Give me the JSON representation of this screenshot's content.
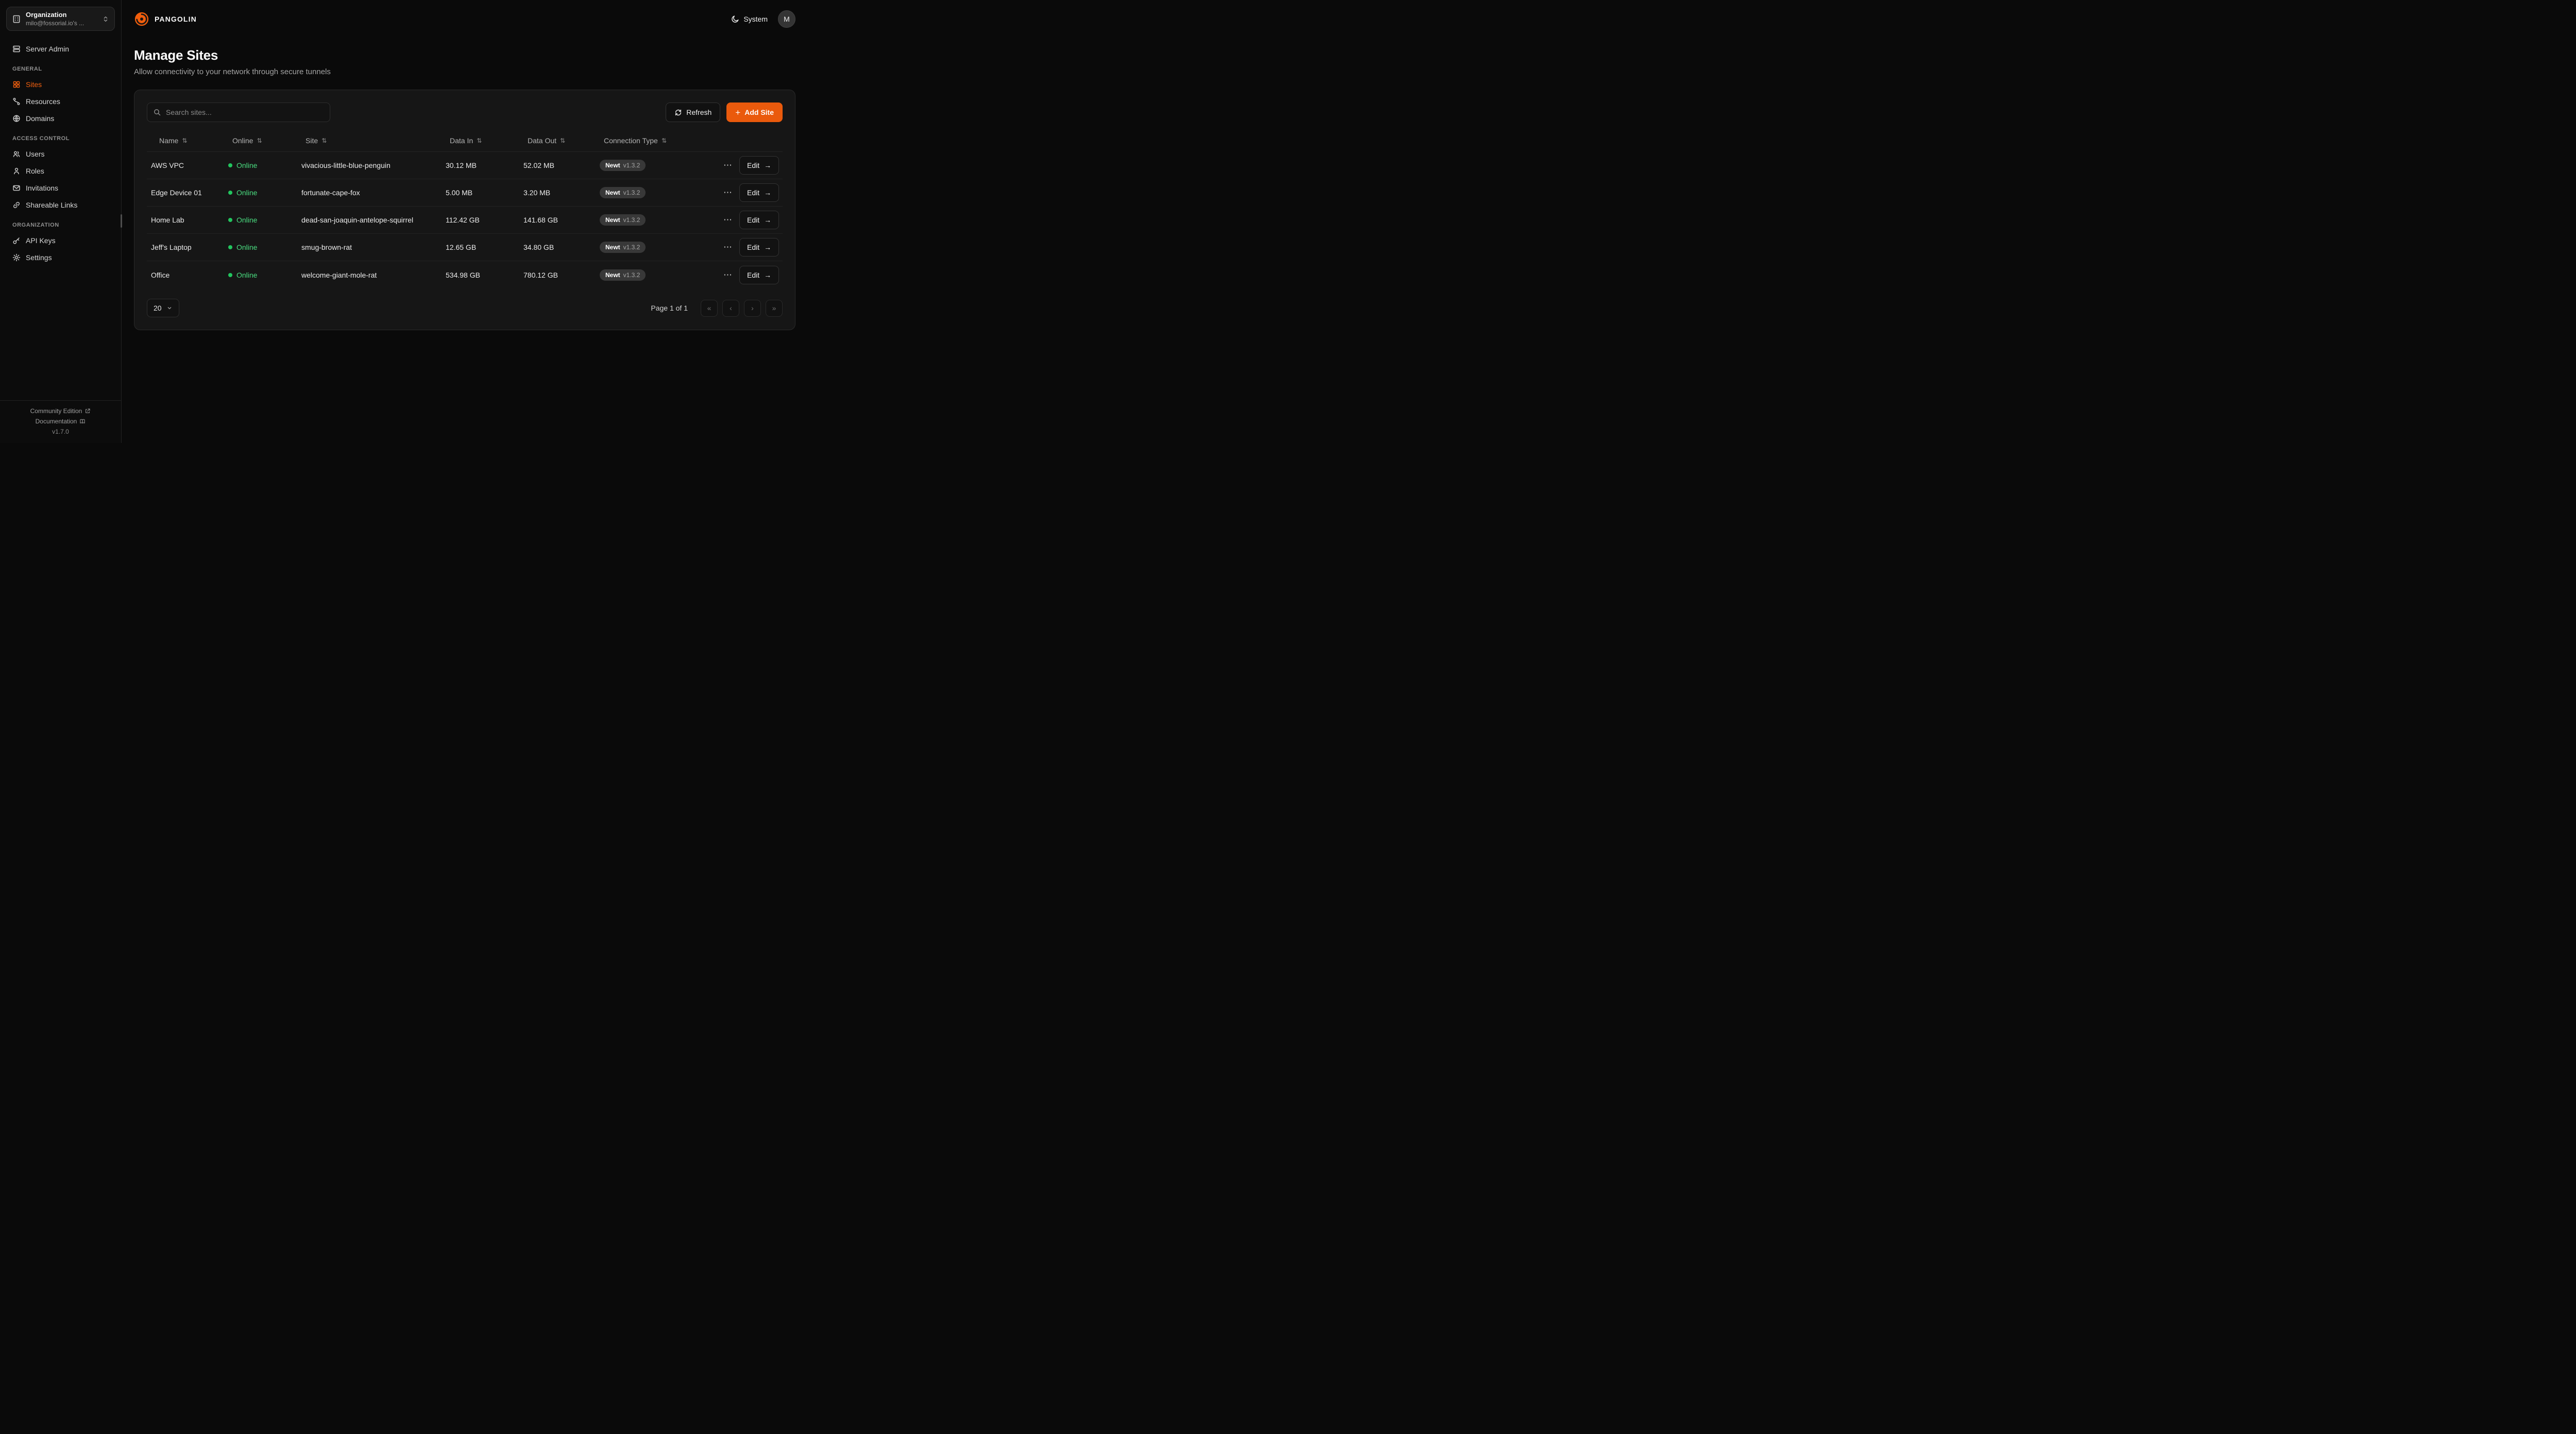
{
  "icons": {
    "plus": "+",
    "sort": "⇅",
    "ellipsis": "⋯",
    "arrow_right": "→",
    "pagination_first": "«",
    "pagination_prev": "‹",
    "pagination_next": "›",
    "pagination_last": "»"
  },
  "sidebar": {
    "org_selector": {
      "title": "Organization",
      "value": "milo@fossorial.io's ..."
    },
    "top_items": [
      {
        "label": "Server Admin",
        "icon": "server"
      }
    ],
    "sections": [
      {
        "label": "GENERAL",
        "items": [
          {
            "label": "Sites",
            "icon": "grid",
            "active": true
          },
          {
            "label": "Resources",
            "icon": "waypoints"
          },
          {
            "label": "Domains",
            "icon": "globe"
          }
        ]
      },
      {
        "label": "ACCESS CONTROL",
        "items": [
          {
            "label": "Users",
            "icon": "users"
          },
          {
            "label": "Roles",
            "icon": "user"
          },
          {
            "label": "Invitations",
            "icon": "mail"
          },
          {
            "label": "Shareable Links",
            "icon": "link"
          }
        ]
      },
      {
        "label": "ORGANIZATION",
        "items": [
          {
            "label": "API Keys",
            "icon": "key"
          },
          {
            "label": "Settings",
            "icon": "gear"
          }
        ]
      }
    ],
    "footer": {
      "community_edition": "Community Edition",
      "documentation": "Documentation",
      "version": "v1.7.0"
    }
  },
  "header": {
    "brand": "PANGOLIN",
    "theme_label": "System",
    "avatar_initial": "M"
  },
  "page": {
    "title": "Manage Sites",
    "subtitle": "Allow connectivity to your network through secure tunnels"
  },
  "toolbar": {
    "search_placeholder": "Search sites...",
    "refresh_label": "Refresh",
    "add_site_label": "Add Site"
  },
  "table": {
    "columns": [
      "Name",
      "Online",
      "Site",
      "Data In",
      "Data Out",
      "Connection Type"
    ],
    "edit_label": "Edit",
    "rows": [
      {
        "name": "AWS VPC",
        "online": "Online",
        "site": "vivacious-little-blue-penguin",
        "data_in": "30.12 MB",
        "data_out": "52.02 MB",
        "conn_name": "Newt",
        "conn_version": "v1.3.2"
      },
      {
        "name": "Edge Device 01",
        "online": "Online",
        "site": "fortunate-cape-fox",
        "data_in": "5.00 MB",
        "data_out": "3.20 MB",
        "conn_name": "Newt",
        "conn_version": "v1.3.2"
      },
      {
        "name": "Home Lab",
        "online": "Online",
        "site": "dead-san-joaquin-antelope-squirrel",
        "data_in": "112.42 GB",
        "data_out": "141.68 GB",
        "conn_name": "Newt",
        "conn_version": "v1.3.2"
      },
      {
        "name": "Jeff's Laptop",
        "online": "Online",
        "site": "smug-brown-rat",
        "data_in": "12.65 GB",
        "data_out": "34.80 GB",
        "conn_name": "Newt",
        "conn_version": "v1.3.2"
      },
      {
        "name": "Office",
        "online": "Online",
        "site": "welcome-giant-mole-rat",
        "data_in": "534.98 GB",
        "data_out": "780.12 GB",
        "conn_name": "Newt",
        "conn_version": "v1.3.2"
      }
    ]
  },
  "pagination": {
    "page_size": "20",
    "page_label": "Page 1 of 1"
  },
  "colors": {
    "accent_orange": "#ea5a0c",
    "online_green": "#4ade80"
  }
}
